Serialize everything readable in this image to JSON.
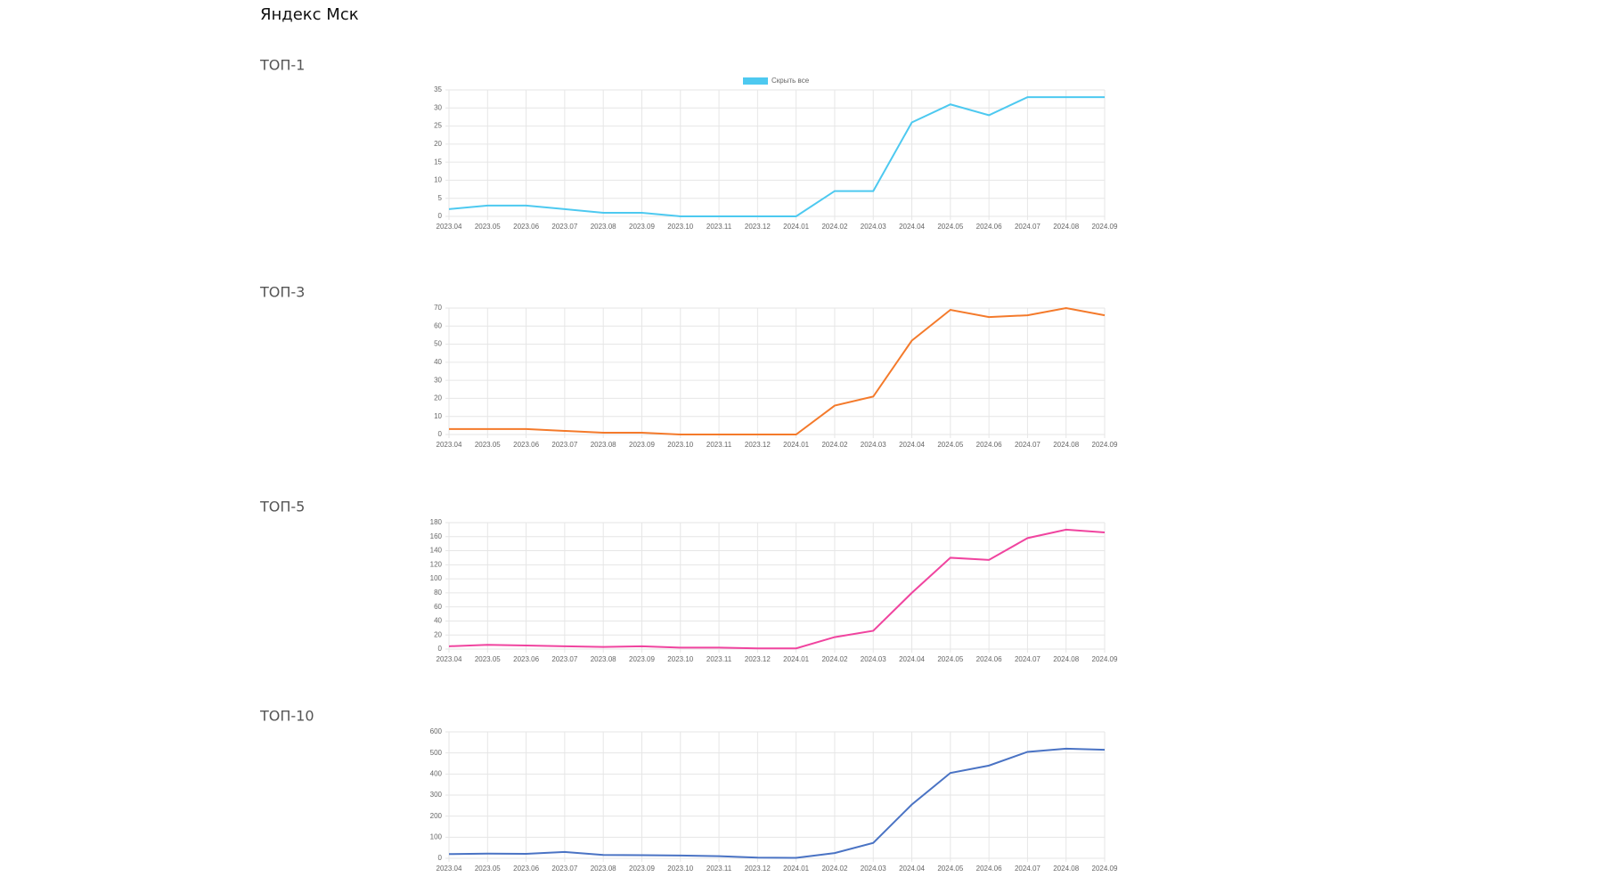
{
  "page_title": "Яндекс Мск",
  "chart_data": [
    {
      "type": "line",
      "title": "ТОП-1",
      "toggle_label": "Скрыть все",
      "categories": [
        "2023.04",
        "2023.05",
        "2023.06",
        "2023.07",
        "2023.08",
        "2023.09",
        "2023.10",
        "2023.11",
        "2023.12",
        "2024.01",
        "2024.02",
        "2024.03",
        "2024.04",
        "2024.05",
        "2024.06",
        "2024.07",
        "2024.08",
        "2024.09"
      ],
      "color": "#4dc9f0",
      "values": [
        2,
        3,
        3,
        2,
        1,
        1,
        0,
        0,
        0,
        0,
        7,
        7,
        26,
        31,
        28,
        33,
        33,
        33
      ],
      "ylim": [
        0,
        35
      ],
      "yticks": [
        0,
        5,
        10,
        15,
        20,
        25,
        30,
        35
      ],
      "grid": true
    },
    {
      "type": "line",
      "title": "ТОП-3",
      "categories": [
        "2023.04",
        "2023.05",
        "2023.06",
        "2023.07",
        "2023.08",
        "2023.09",
        "2023.10",
        "2023.11",
        "2023.12",
        "2024.01",
        "2024.02",
        "2024.03",
        "2024.04",
        "2024.05",
        "2024.06",
        "2024.07",
        "2024.08",
        "2024.09"
      ],
      "color": "#f47a2b",
      "values": [
        3,
        3,
        3,
        2,
        1,
        1,
        0,
        0,
        0,
        0,
        16,
        21,
        52,
        69,
        65,
        66,
        70,
        66
      ],
      "ylim": [
        0,
        70
      ],
      "yticks": [
        0,
        10,
        20,
        30,
        40,
        50,
        60,
        70
      ],
      "grid": true
    },
    {
      "type": "line",
      "title": "ТОП-5",
      "categories": [
        "2023.04",
        "2023.05",
        "2023.06",
        "2023.07",
        "2023.08",
        "2023.09",
        "2023.10",
        "2023.11",
        "2023.12",
        "2024.01",
        "2024.02",
        "2024.03",
        "2024.04",
        "2024.05",
        "2024.06",
        "2024.07",
        "2024.08",
        "2024.09"
      ],
      "color": "#f0449f",
      "values": [
        4,
        6,
        5,
        4,
        3,
        4,
        2,
        2,
        1,
        1,
        17,
        26,
        80,
        130,
        127,
        158,
        170,
        166
      ],
      "ylim": [
        0,
        180
      ],
      "yticks": [
        0,
        20,
        40,
        60,
        80,
        100,
        120,
        140,
        160,
        180
      ],
      "grid": true
    },
    {
      "type": "line",
      "title": "ТОП-10",
      "categories": [
        "2023.04",
        "2023.05",
        "2023.06",
        "2023.07",
        "2023.08",
        "2023.09",
        "2023.10",
        "2023.11",
        "2023.12",
        "2024.01",
        "2024.02",
        "2024.03",
        "2024.04",
        "2024.05",
        "2024.06",
        "2024.07",
        "2024.08",
        "2024.09"
      ],
      "color": "#4a73c4",
      "values": [
        20,
        22,
        21,
        30,
        16,
        15,
        13,
        10,
        3,
        2,
        25,
        73,
        255,
        405,
        440,
        505,
        520,
        515
      ],
      "ylim": [
        0,
        600
      ],
      "yticks": [
        0,
        100,
        200,
        300,
        400,
        500,
        600
      ],
      "grid": true
    }
  ]
}
